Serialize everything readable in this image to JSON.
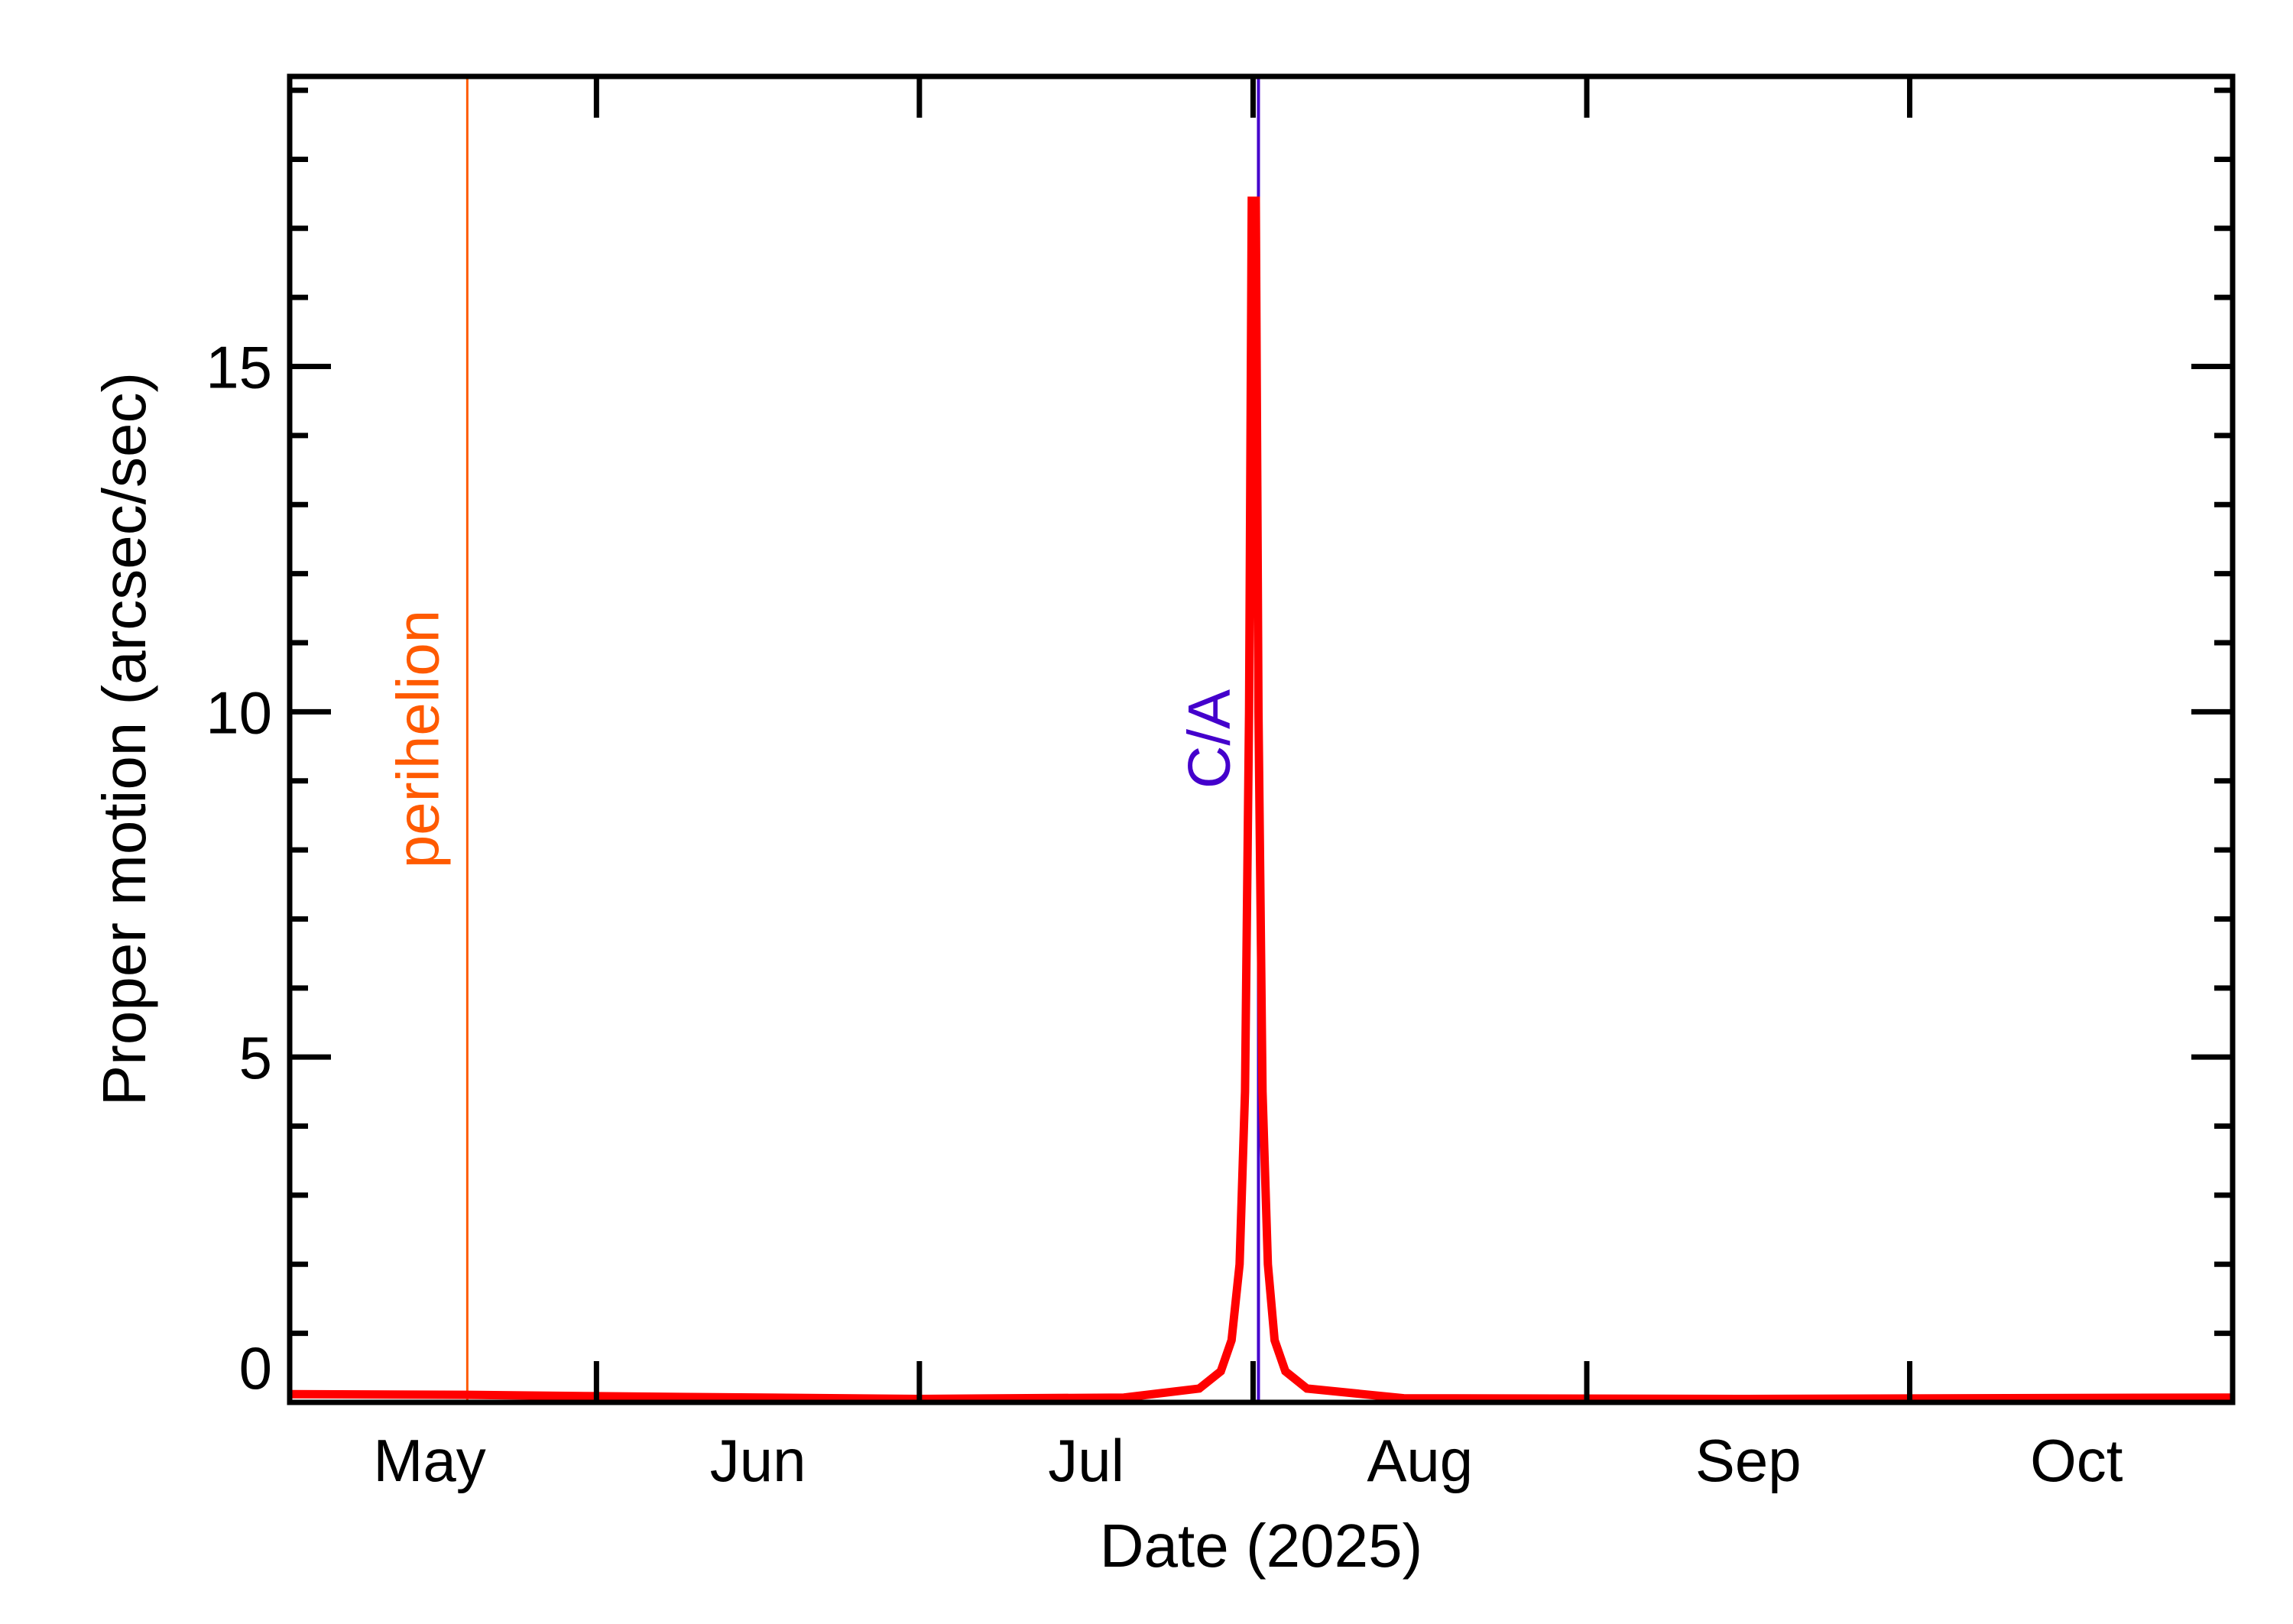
{
  "chart_data": {
    "type": "line",
    "xlabel": "Date (2025)",
    "ylabel": "Proper motion (arcsec/sec)",
    "xlim": [
      "2025-05-03T12:00",
      "2025-10-31T00:00"
    ],
    "ylim": [
      0,
      19.2
    ],
    "x_tick_labels": [
      {
        "label": "May",
        "month_start": "2025-05-01",
        "month_end": "2025-06-01"
      },
      {
        "label": "Jun",
        "month_start": "2025-06-01",
        "month_end": "2025-07-01"
      },
      {
        "label": "Jul",
        "month_start": "2025-07-01",
        "month_end": "2025-08-01"
      },
      {
        "label": "Aug",
        "month_start": "2025-08-01",
        "month_end": "2025-09-01"
      },
      {
        "label": "Sep",
        "month_start": "2025-09-01",
        "month_end": "2025-10-01"
      },
      {
        "label": "Oct",
        "month_start": "2025-10-01",
        "month_end": "2025-11-01"
      }
    ],
    "y_ticks": [
      0,
      5,
      10,
      15
    ],
    "y_tick_labels": [
      "0",
      "5",
      "10",
      "15"
    ],
    "y_minor_step": 1,
    "grid": false,
    "series": [
      {
        "color": "#ff0000",
        "points": [
          [
            "2025-05-03T12:00",
            0.12
          ],
          [
            "2025-05-20T00:00",
            0.11
          ],
          [
            "2025-06-01T00:00",
            0.09
          ],
          [
            "2025-07-01T00:00",
            0.05
          ],
          [
            "2025-07-20T00:00",
            0.07
          ],
          [
            "2025-07-27T00:00",
            0.2
          ],
          [
            "2025-07-29T00:00",
            0.45
          ],
          [
            "2025-07-30T00:00",
            0.9
          ],
          [
            "2025-07-30T18:00",
            2.0
          ],
          [
            "2025-07-31T06:00",
            4.5
          ],
          [
            "2025-07-31T15:00",
            10.0
          ],
          [
            "2025-07-31T21:00",
            17.4
          ],
          [
            "2025-08-01T06:00",
            17.4
          ],
          [
            "2025-08-01T12:00",
            10.0
          ],
          [
            "2025-08-01T21:00",
            4.5
          ],
          [
            "2025-08-02T09:00",
            2.0
          ],
          [
            "2025-08-03T00:00",
            0.9
          ],
          [
            "2025-08-04T00:00",
            0.45
          ],
          [
            "2025-08-06T00:00",
            0.2
          ],
          [
            "2025-08-15T00:00",
            0.06
          ],
          [
            "2025-09-15T00:00",
            0.05
          ],
          [
            "2025-10-31T00:00",
            0.07
          ]
        ]
      }
    ],
    "annotations": [
      {
        "label": "perihelion",
        "date": "2025-05-20T00:00",
        "color": "#ff5a00"
      },
      {
        "label": "C/A",
        "date": "2025-08-01T12:00",
        "color": "#4400cc"
      }
    ],
    "axis_color": "#000000"
  }
}
